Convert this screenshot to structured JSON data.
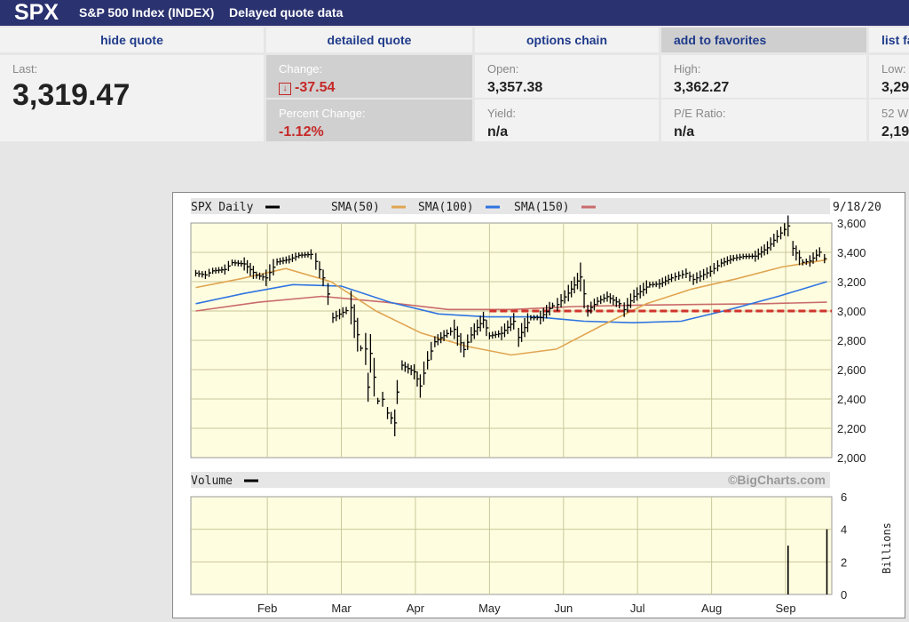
{
  "header": {
    "symbol": "SPX",
    "name": "S&P 500 Index (INDEX)",
    "note": "Delayed quote data"
  },
  "nav": {
    "hide_quote": "hide quote",
    "detailed_quote": "detailed quote",
    "options_chain": "options chain",
    "add_favorites": "add to favorites",
    "list_partial": "list fa"
  },
  "quote": {
    "last_label": "Last:",
    "last_value": "3,319.47",
    "change_label": "Change:",
    "change_value": "-37.54",
    "pct_label": "Percent Change:",
    "pct_value": "-1.12%",
    "open_label": "Open:",
    "open_value": "3,357.38",
    "yield_label": "Yield:",
    "yield_value": "n/a",
    "high_label": "High:",
    "high_value": "3,362.27",
    "pe_label": "P/E Ratio:",
    "pe_value": "n/a",
    "low_label": "Low:",
    "low_value": "3,29",
    "wk52_label": "52 W",
    "wk52_value": "2,19"
  },
  "chart_data": {
    "type": "line",
    "legend": [
      {
        "name": "SPX Daily",
        "color": "#000000"
      },
      {
        "name": "SMA(50)",
        "color": "#e0a552"
      },
      {
        "name": "SMA(100)",
        "color": "#2f74e0"
      },
      {
        "name": "SMA(150)",
        "color": "#c96b6b"
      }
    ],
    "date": "9/18/20",
    "watermark": "©BigCharts.com",
    "months": [
      "Feb",
      "Mar",
      "Apr",
      "May",
      "Jun",
      "Jul",
      "Aug",
      "Sep"
    ],
    "price_axis": {
      "ticks": [
        "3,600",
        "3,400",
        "3,200",
        "3,000",
        "2,800",
        "2,600",
        "2,400",
        "2,200",
        "2,000"
      ],
      "ylim": [
        2000,
        3600
      ]
    },
    "volume_label": "Volume",
    "volume_axis": {
      "ticks": [
        "6",
        "4",
        "2",
        "0"
      ],
      "unit": "Billions",
      "ylim": [
        0,
        6
      ]
    },
    "reference_level": 3000,
    "spx_close": [
      [
        "Jan 2",
        3258
      ],
      [
        "Jan 6",
        3246
      ],
      [
        "Jan 9",
        3274
      ],
      [
        "Jan 14",
        3283
      ],
      [
        "Jan 17",
        3330
      ],
      [
        "Jan 22",
        3321
      ],
      [
        "Jan 27",
        3244
      ],
      [
        "Jan 31",
        3226
      ],
      [
        "Feb 5",
        3335
      ],
      [
        "Feb 10",
        3352
      ],
      [
        "Feb 14",
        3380
      ],
      [
        "Feb 19",
        3386
      ],
      [
        "Feb 21",
        3338
      ],
      [
        "Feb 24",
        3226
      ],
      [
        "Feb 26",
        3116
      ],
      [
        "Feb 28",
        2954
      ],
      [
        "Mar 3",
        3003
      ],
      [
        "Mar 5",
        3023
      ],
      [
        "Mar 9",
        2746
      ],
      [
        "Mar 11",
        2741
      ],
      [
        "Mar 12",
        2480
      ],
      [
        "Mar 13",
        2711
      ],
      [
        "Mar 16",
        2386
      ],
      [
        "Mar 18",
        2398
      ],
      [
        "Mar 20",
        2304
      ],
      [
        "Mar 23",
        2237
      ],
      [
        "Mar 24",
        2447
      ],
      [
        "Mar 26",
        2630
      ],
      [
        "Mar 31",
        2585
      ],
      [
        "Apr 3",
        2488
      ],
      [
        "Apr 6",
        2664
      ],
      [
        "Apr 9",
        2790
      ],
      [
        "Apr 14",
        2846
      ],
      [
        "Apr 17",
        2875
      ],
      [
        "Apr 21",
        2737
      ],
      [
        "Apr 24",
        2837
      ],
      [
        "Apr 29",
        2939
      ],
      [
        "May 1",
        2831
      ],
      [
        "May 6",
        2848
      ],
      [
        "May 11",
        2930
      ],
      [
        "May 13",
        2820
      ],
      [
        "May 18",
        2954
      ],
      [
        "May 22",
        2955
      ],
      [
        "May 27",
        3036
      ],
      [
        "May 29",
        3044
      ],
      [
        "Jun 3",
        3122
      ],
      [
        "Jun 8",
        3232
      ],
      [
        "Jun 11",
        3002
      ],
      [
        "Jun 15",
        3066
      ],
      [
        "Jun 19",
        3098
      ],
      [
        "Jun 24",
        3050
      ],
      [
        "Jun 26",
        3009
      ],
      [
        "Jun 30",
        3100
      ],
      [
        "Jul 6",
        3179
      ],
      [
        "Jul 10",
        3185
      ],
      [
        "Jul 15",
        3226
      ],
      [
        "Jul 21",
        3257
      ],
      [
        "Jul 24",
        3215
      ],
      [
        "Jul 31",
        3271
      ],
      [
        "Aug 5",
        3327
      ],
      [
        "Aug 10",
        3360
      ],
      [
        "Aug 14",
        3372
      ],
      [
        "Aug 19",
        3374
      ],
      [
        "Aug 24",
        3431
      ],
      [
        "Aug 28",
        3508
      ],
      [
        "Sep 2",
        3580
      ],
      [
        "Sep 4",
        3427
      ],
      [
        "Sep 8",
        3332
      ],
      [
        "Sep 11",
        3341
      ],
      [
        "Sep 15",
        3401
      ],
      [
        "Sep 17",
        3357
      ],
      [
        "Sep 18",
        3319
      ]
    ],
    "sma50": [
      3160,
      3220,
      3290,
      3200,
      3000,
      2850,
      2760,
      2700,
      2740,
      2900,
      3050,
      3150,
      3220,
      3300,
      3350
    ],
    "sma100": [
      3050,
      3120,
      3180,
      3170,
      3060,
      2980,
      2960,
      2960,
      2930,
      2920,
      2930,
      3010,
      3100,
      3200
    ],
    "sma150": [
      3000,
      3060,
      3100,
      3060,
      3010,
      3010,
      3030,
      3040,
      3045,
      3050,
      3060
    ],
    "volume_billions": [
      [
        "Sep 2",
        3.0
      ],
      [
        "Sep 18",
        4.0
      ]
    ]
  }
}
